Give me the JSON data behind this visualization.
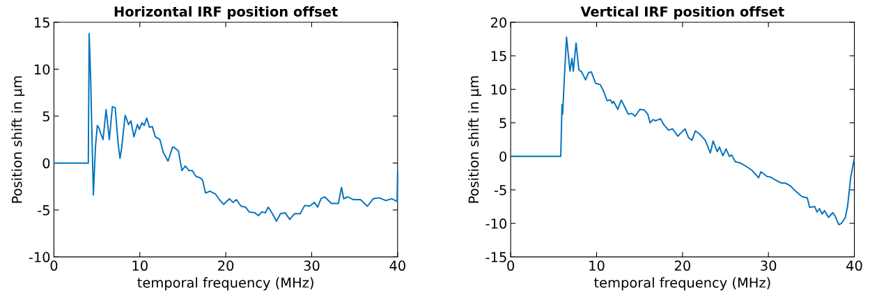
{
  "chart_data": [
    {
      "type": "line",
      "title": "Horizontal IRF position offset",
      "xlabel": "temporal frequency (MHz)",
      "ylabel": "Position shift in µm",
      "xlim": [
        0,
        40
      ],
      "ylim": [
        -10,
        15
      ],
      "xticks": [
        0,
        10,
        20,
        30,
        40
      ],
      "yticks": [
        -10,
        -5,
        0,
        5,
        10,
        15
      ],
      "grid": false,
      "legend": false,
      "series": [
        {
          "color": "#0072bd",
          "x": [
            0,
            4.0,
            4.1,
            4.27,
            4.59,
            4.83,
            5.05,
            5.26,
            5.5,
            5.72,
            6.07,
            6.45,
            6.8,
            7.13,
            7.48,
            7.69,
            7.88,
            8.29,
            8.69,
            8.96,
            9.31,
            9.72,
            9.93,
            10.26,
            10.5,
            10.8,
            11.12,
            11.44,
            11.8,
            12.33,
            12.74,
            13.28,
            13.8,
            13.95,
            14.49,
            14.9,
            15.3,
            15.7,
            16.11,
            16.5,
            17.06,
            17.3,
            17.65,
            18.14,
            18.8,
            19.27,
            19.76,
            20.43,
            20.84,
            21.24,
            21.78,
            22.32,
            22.72,
            23.4,
            23.8,
            24.2,
            24.6,
            24.94,
            25.37,
            25.9,
            26.37,
            26.9,
            27.45,
            27.99,
            28.66,
            29.2,
            29.74,
            30.33,
            30.69,
            31.09,
            31.5,
            32.3,
            33.1,
            33.47,
            33.73,
            34.2,
            34.87,
            35.68,
            36.49,
            37.17,
            37.84,
            38.65,
            39.33,
            39.94,
            40
          ],
          "values": [
            0,
            0,
            13.8,
            9.1,
            -3.4,
            1.7,
            4.0,
            3.7,
            3.0,
            2.5,
            5.7,
            2.5,
            6.0,
            5.9,
            2.0,
            0.5,
            1.6,
            5.1,
            4.1,
            4.5,
            2.8,
            4.1,
            3.6,
            4.3,
            4.0,
            4.8,
            3.8,
            3.9,
            2.8,
            2.5,
            1.1,
            0.2,
            1.7,
            1.7,
            1.3,
            -0.8,
            -0.3,
            -0.8,
            -0.8,
            -1.4,
            -1.6,
            -1.8,
            -3.2,
            -3.0,
            -3.3,
            -3.9,
            -4.4,
            -3.8,
            -4.2,
            -3.9,
            -4.6,
            -4.7,
            -5.2,
            -5.3,
            -5.6,
            -5.2,
            -5.3,
            -4.7,
            -5.3,
            -6.2,
            -5.4,
            -5.3,
            -6.0,
            -5.4,
            -5.4,
            -4.5,
            -4.6,
            -4.2,
            -4.7,
            -3.8,
            -3.6,
            -4.3,
            -4.3,
            -2.6,
            -3.8,
            -3.6,
            -3.9,
            -3.9,
            -4.6,
            -3.8,
            -3.7,
            -4.0,
            -3.8,
            -4.1,
            -1.0
          ]
        }
      ]
    },
    {
      "type": "line",
      "title": "Vertical IRF position offset",
      "xlabel": "temporal frequency (MHz)",
      "ylabel": "Position shift in µm",
      "xlim": [
        0,
        40
      ],
      "ylim": [
        -15,
        20
      ],
      "xticks": [
        0,
        10,
        20,
        30,
        40
      ],
      "yticks": [
        -15,
        -10,
        -5,
        0,
        5,
        10,
        15,
        20
      ],
      "grid": false,
      "legend": false,
      "series": [
        {
          "color": "#0072bd",
          "x": [
            0,
            5.83,
            5.97,
            6.05,
            6.23,
            6.5,
            6.9,
            7.13,
            7.29,
            7.61,
            7.94,
            8.26,
            8.72,
            9.07,
            9.39,
            9.88,
            10.42,
            10.82,
            11.22,
            11.63,
            11.82,
            11.98,
            12.47,
            12.87,
            13.27,
            13.68,
            14.08,
            14.49,
            15.03,
            15.57,
            15.95,
            16.22,
            16.57,
            16.84,
            17.44,
            17.84,
            18.38,
            18.84,
            19.46,
            19.89,
            20.3,
            20.7,
            21.1,
            21.5,
            22.02,
            22.65,
            23.24,
            23.56,
            24.05,
            24.3,
            24.7,
            25.07,
            25.45,
            25.72,
            26.15,
            26.75,
            27.42,
            28.1,
            28.85,
            29.13,
            29.85,
            30.26,
            30.78,
            31.55,
            31.99,
            32.55,
            33.09,
            33.9,
            34.52,
            34.8,
            35.39,
            35.66,
            35.93,
            36.26,
            36.52,
            37.0,
            37.49,
            37.76,
            38.19,
            38.5,
            38.95,
            39.22,
            39.57,
            39.98
          ],
          "values": [
            0,
            0,
            7.7,
            6.3,
            11.3,
            17.8,
            12.7,
            14.6,
            12.7,
            16.9,
            12.9,
            12.6,
            11.4,
            12.5,
            12.6,
            10.9,
            10.7,
            9.7,
            8.3,
            8.4,
            7.9,
            8.2,
            7.0,
            8.4,
            7.4,
            6.3,
            6.4,
            6.0,
            7.0,
            6.9,
            6.3,
            5.0,
            5.5,
            5.3,
            5.6,
            4.7,
            3.9,
            4.1,
            3.0,
            3.6,
            4.1,
            2.8,
            2.4,
            3.8,
            3.3,
            2.4,
            0.5,
            2.3,
            0.7,
            1.4,
            0.1,
            1.1,
            0.0,
            0.2,
            -0.8,
            -1.0,
            -1.5,
            -2.1,
            -3.2,
            -2.3,
            -3.0,
            -3.1,
            -3.5,
            -4.0,
            -4.0,
            -4.4,
            -5.1,
            -6.0,
            -6.2,
            -7.6,
            -7.5,
            -8.3,
            -7.8,
            -8.6,
            -8.1,
            -9.1,
            -8.4,
            -8.9,
            -10.2,
            -10.0,
            -9.1,
            -7.4,
            -3.2,
            -0.4
          ]
        }
      ]
    }
  ]
}
